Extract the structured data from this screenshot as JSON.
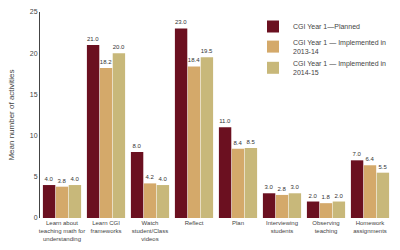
{
  "chart_data": {
    "type": "bar",
    "categories": [
      "Learn about\nteaching math for\nunderstanding",
      "Learn CGI\nframeworks",
      "Watch\nstudent/Class\nvideos",
      "Reflect",
      "Plan",
      "Interviewing\nstudents",
      "Observing\nteaching",
      "Homework\nassignments"
    ],
    "series": [
      {
        "name": "CGI Year 1—Planned",
        "color": "#6b1020",
        "values": [
          4.0,
          21.0,
          8.0,
          23.0,
          11.0,
          3.0,
          2.0,
          7.0
        ],
        "value_labels": [
          "4.0",
          "21.0",
          "8.0",
          "23.0",
          "11.0",
          "3.0",
          "2.0",
          "7.0"
        ]
      },
      {
        "name": "CGI Year 1 — Implemented in\n2013-14",
        "color": "#d4a96a",
        "values": [
          3.8,
          18.2,
          4.2,
          18.4,
          8.4,
          2.8,
          1.8,
          6.4
        ],
        "value_labels": [
          "3.8",
          "18.2",
          "4.2",
          "18.4",
          "8.4",
          "2.8",
          "1.8",
          "6.4"
        ]
      },
      {
        "name": "CGI Year 1 — Implemented in\n2014-15",
        "color": "#c8b87a",
        "values": [
          4.0,
          20.0,
          4.0,
          19.5,
          8.5,
          3.0,
          2.0,
          5.5
        ],
        "value_labels": [
          "4.0",
          "20.0",
          "4.0",
          "19.5",
          "8.5",
          "3.0",
          "2.0",
          "5.5"
        ]
      }
    ],
    "ylabel": "Mean number of activities",
    "ylim": [
      0,
      25
    ],
    "yticks": [
      0,
      5,
      10,
      15,
      20,
      25
    ],
    "data_labels": true,
    "legend": "upper right",
    "grid": false
  }
}
